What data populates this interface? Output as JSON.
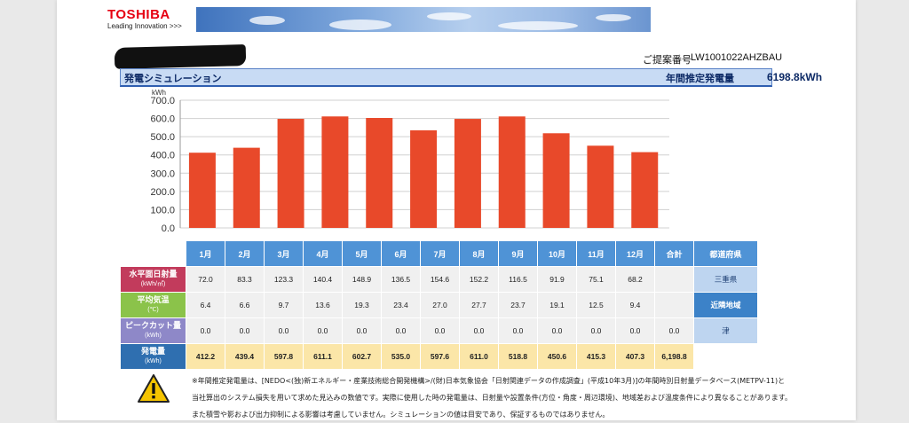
{
  "header": {
    "logo": "TOSHIBA",
    "tagline": "Leading Innovation >>>",
    "proposal_label": "ご提案番号",
    "proposal_number": "LW1001022AHZBAU"
  },
  "titlebar": {
    "left": "発電シミュレーション",
    "annual_label": "年間推定発電量",
    "annual_value": "6198.8kWh"
  },
  "chart_data": {
    "type": "bar",
    "ylabel": "kWh",
    "ylim": [
      0,
      700
    ],
    "yticks": [
      "0.0",
      "100.0",
      "200.0",
      "300.0",
      "400.0",
      "500.0",
      "600.0",
      "700.0"
    ],
    "categories": [
      "1月",
      "2月",
      "3月",
      "4月",
      "5月",
      "6月",
      "7月",
      "8月",
      "9月",
      "10月",
      "11月",
      "12月"
    ],
    "values": [
      412.2,
      439.4,
      597.8,
      611.1,
      602.7,
      535.0,
      597.6,
      611.0,
      518.8,
      450.6,
      415.3,
      407.3
    ],
    "color": "#e8492a",
    "grid": true
  },
  "table": {
    "headers": [
      "1月",
      "2月",
      "3月",
      "4月",
      "5月",
      "6月",
      "7月",
      "8月",
      "9月",
      "10月",
      "11月",
      "12月",
      "合計",
      "都道府県"
    ],
    "rows": [
      {
        "label": "水平面日射量",
        "unit": "(kWh/㎡)",
        "values": [
          "72.0",
          "83.3",
          "123.3",
          "140.4",
          "148.9",
          "136.5",
          "154.6",
          "152.2",
          "116.5",
          "91.9",
          "75.1",
          "68.2",
          ""
        ],
        "extra": "三重県"
      },
      {
        "label": "平均気温",
        "unit": "(℃)",
        "values": [
          "6.4",
          "6.6",
          "9.7",
          "13.6",
          "19.3",
          "23.4",
          "27.0",
          "27.7",
          "23.7",
          "19.1",
          "12.5",
          "9.4",
          ""
        ],
        "extra": "近隣地域"
      },
      {
        "label": "ピークカット量",
        "unit": "(kWh)",
        "values": [
          "0.0",
          "0.0",
          "0.0",
          "0.0",
          "0.0",
          "0.0",
          "0.0",
          "0.0",
          "0.0",
          "0.0",
          "0.0",
          "0.0",
          "0.0"
        ],
        "extra": "津"
      },
      {
        "label": "発電量",
        "unit": "(kWh)",
        "values": [
          "412.2",
          "439.4",
          "597.8",
          "611.1",
          "602.7",
          "535.0",
          "597.6",
          "611.0",
          "518.8",
          "450.6",
          "415.3",
          "407.3",
          "6,198.8"
        ],
        "extra": ""
      }
    ]
  },
  "notes": [
    "※年間推定発電量は、[NEDO<(独)新エネルギー・産業技術総合開発機構>/(財)日本気象協会「日射関連データの作成調査」(平成10年3月)]の年間時別日射量データベース(METPV-11)と",
    "当社算出のシステム損失を用いて求めた見込みの数値です。実際に使用した時の発電量は、日射量や設置条件(方位・角度・周辺環境)、地域差および温度条件により異なることがあります。",
    "また積雪や影および出力抑制による影響は考慮していません。シミュレーションの値は目安であり、保証するものではありません。"
  ]
}
